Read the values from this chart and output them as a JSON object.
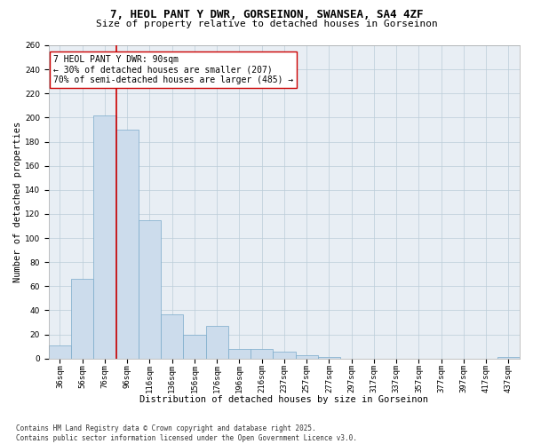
{
  "title1": "7, HEOL PANT Y DWR, GORSEINON, SWANSEA, SA4 4ZF",
  "title2": "Size of property relative to detached houses in Gorseinon",
  "xlabel": "Distribution of detached houses by size in Gorseinon",
  "ylabel": "Number of detached properties",
  "categories": [
    "36sqm",
    "56sqm",
    "76sqm",
    "96sqm",
    "116sqm",
    "136sqm",
    "156sqm",
    "176sqm",
    "196sqm",
    "216sqm",
    "237sqm",
    "257sqm",
    "277sqm",
    "297sqm",
    "317sqm",
    "337sqm",
    "357sqm",
    "377sqm",
    "397sqm",
    "417sqm",
    "437sqm"
  ],
  "values": [
    11,
    66,
    202,
    190,
    115,
    37,
    20,
    27,
    8,
    8,
    6,
    3,
    1,
    0,
    0,
    0,
    0,
    0,
    0,
    0,
    1
  ],
  "bar_color": "#ccdcec",
  "bar_edge_color": "#7aaaca",
  "vline_x": 2.5,
  "vline_color": "#cc0000",
  "annotation_text": "7 HEOL PANT Y DWR: 90sqm\n← 30% of detached houses are smaller (207)\n70% of semi-detached houses are larger (485) →",
  "annotation_box_color": "#ffffff",
  "annotation_box_edge": "#cc0000",
  "ylim": [
    0,
    260
  ],
  "yticks": [
    0,
    20,
    40,
    60,
    80,
    100,
    120,
    140,
    160,
    180,
    200,
    220,
    240,
    260
  ],
  "footer1": "Contains HM Land Registry data © Crown copyright and database right 2025.",
  "footer2": "Contains public sector information licensed under the Open Government Licence v3.0.",
  "bg_color": "#ffffff",
  "plot_bg_color": "#e8eef4",
  "title_fontsize": 9,
  "subtitle_fontsize": 8,
  "axis_label_fontsize": 7.5,
  "tick_fontsize": 6.5,
  "annotation_fontsize": 7,
  "footer_fontsize": 5.5
}
